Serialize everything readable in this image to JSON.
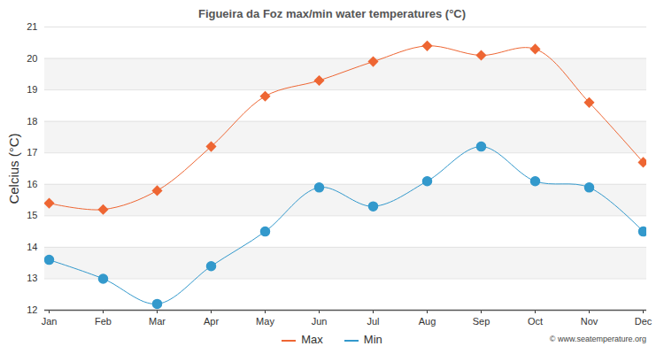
{
  "chart_data": {
    "type": "line",
    "title": "Figueira da Foz max/min water temperatures (°C)",
    "y_label": "Celcius (°C)",
    "annotations": [
      "© www.seatemperature.org"
    ],
    "categories": [
      "Jan",
      "Feb",
      "Mar",
      "Apr",
      "May",
      "Jun",
      "Jul",
      "Aug",
      "Sep",
      "Oct",
      "Nov",
      "Dec"
    ],
    "series": [
      {
        "name": "Max",
        "color": "#ee6633",
        "marker": "diamond",
        "values": [
          15.4,
          15.2,
          15.8,
          17.2,
          18.8,
          19.3,
          19.9,
          20.4,
          20.1,
          20.3,
          18.6,
          16.7
        ]
      },
      {
        "name": "Min",
        "color": "#3399cc",
        "marker": "circle",
        "values": [
          13.6,
          13.0,
          12.2,
          13.4,
          14.5,
          15.9,
          15.3,
          16.1,
          17.2,
          16.1,
          15.9,
          14.5
        ]
      }
    ],
    "ylim": [
      12,
      21
    ],
    "yticks": [
      12,
      13,
      14,
      15,
      16,
      17,
      18,
      19,
      20,
      21
    ],
    "grid": true,
    "legend": "bottom"
  }
}
